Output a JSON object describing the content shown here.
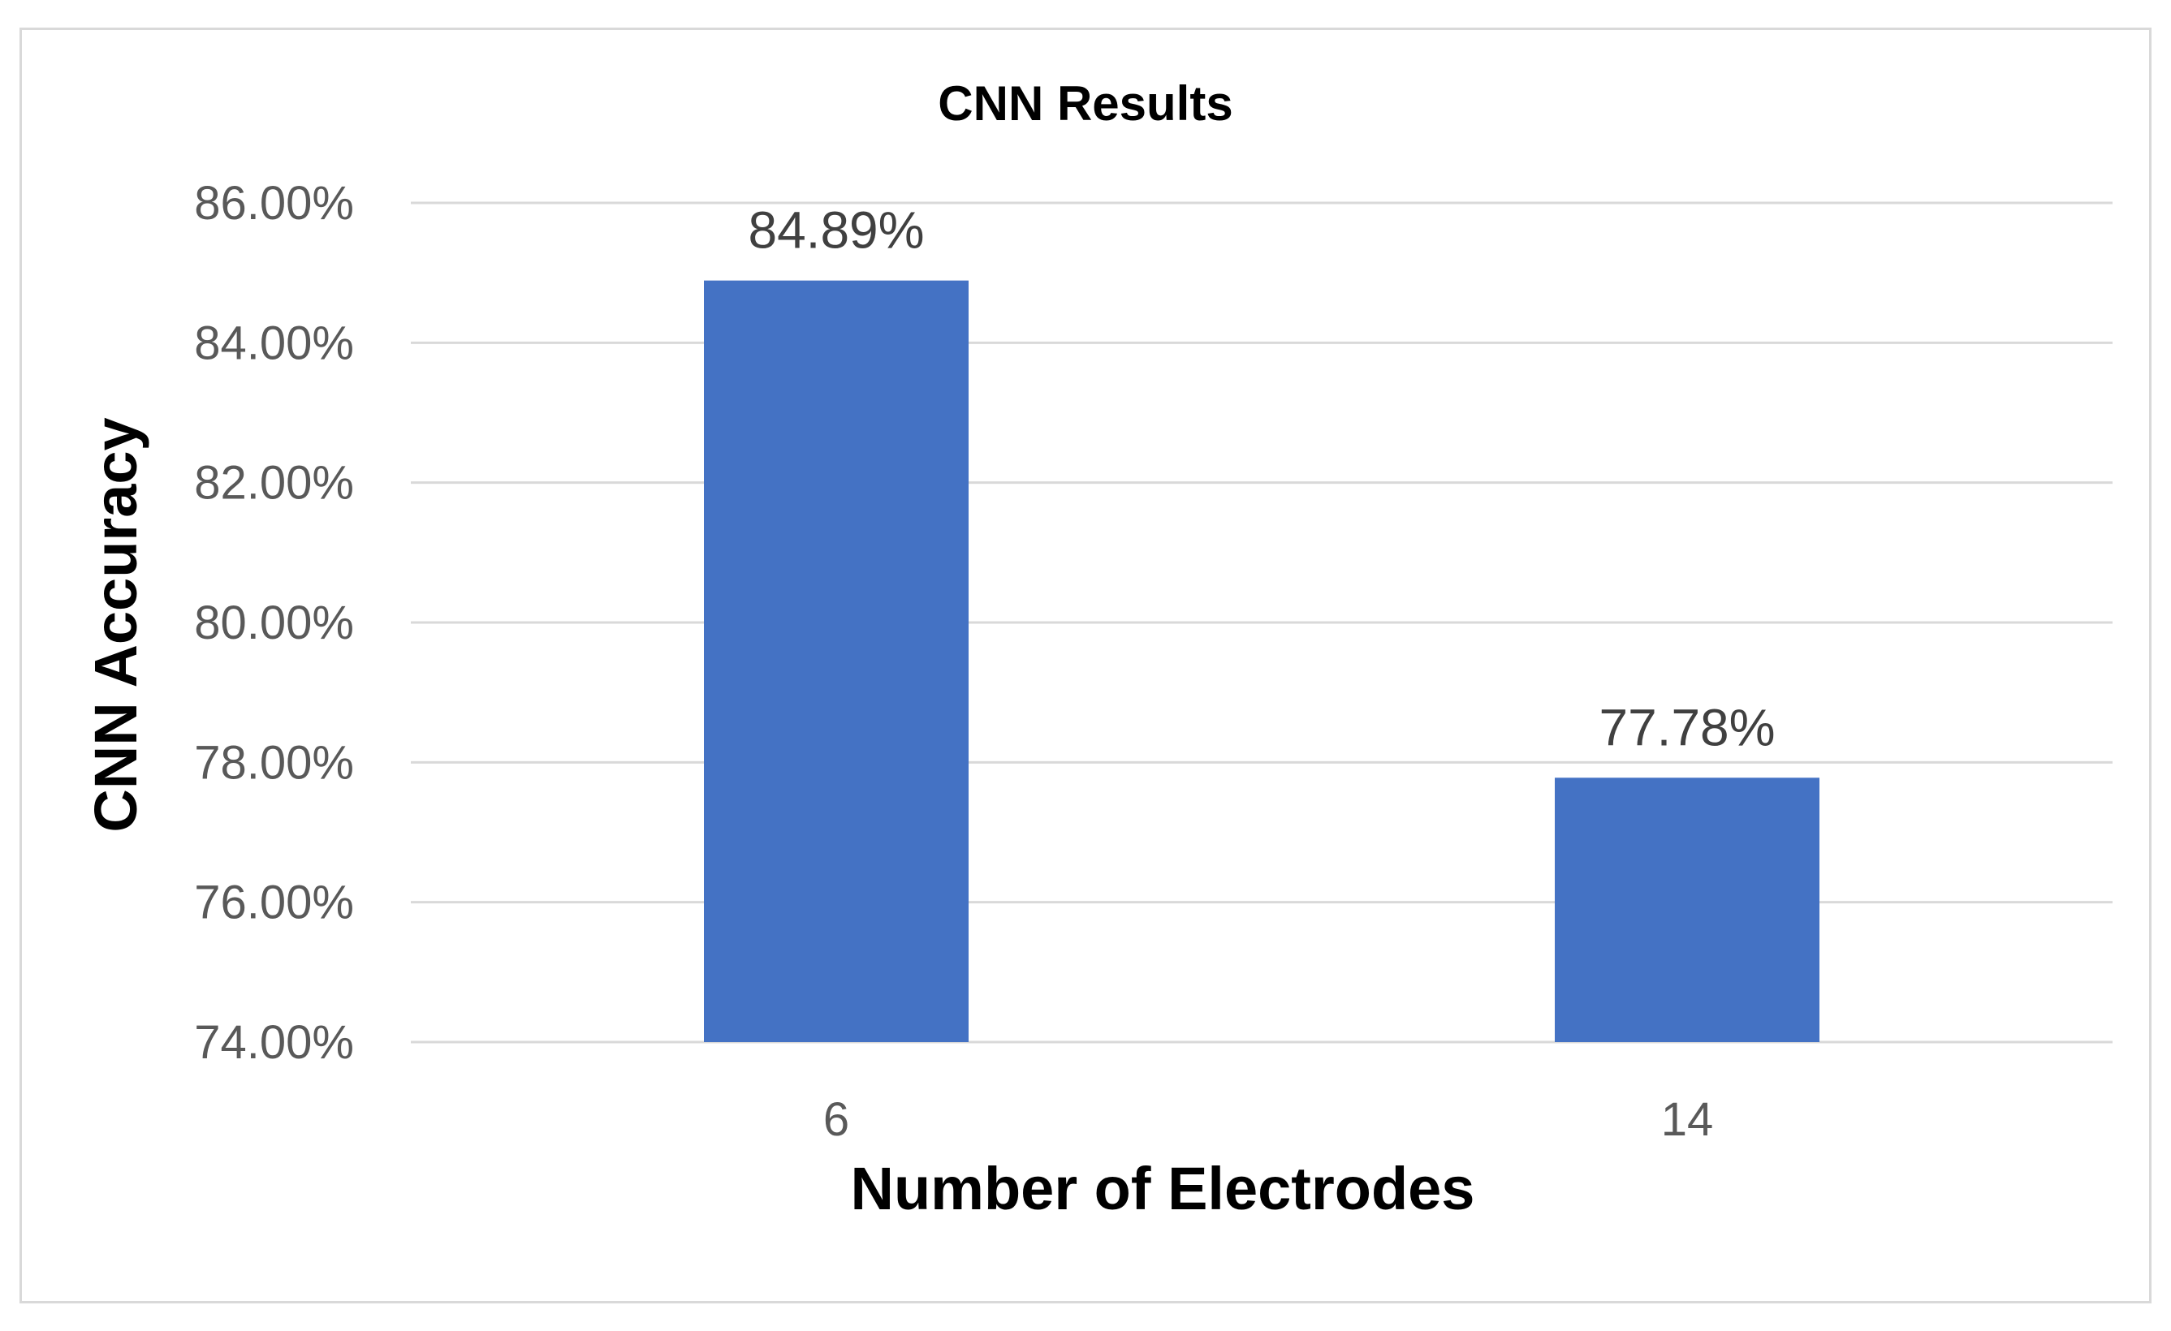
{
  "chart_data": {
    "type": "bar",
    "title": "CNN Results",
    "xlabel": "Number of Electrodes",
    "ylabel": "CNN Accuracy",
    "categories": [
      "6",
      "14"
    ],
    "values": [
      84.89,
      77.78
    ],
    "data_labels": [
      "84.89%",
      "77.78%"
    ],
    "ylim": [
      74,
      86
    ],
    "yticks": [
      74,
      76,
      78,
      80,
      82,
      84,
      86
    ],
    "ytick_labels": [
      "74.00%",
      "76.00%",
      "78.00%",
      "80.00%",
      "82.00%",
      "84.00%",
      "86.00%"
    ],
    "grid": true,
    "legend": "none",
    "bar_color": "#4472c4"
  }
}
